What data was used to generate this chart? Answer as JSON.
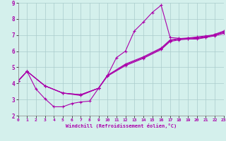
{
  "xlabel": "Windchill (Refroidissement éolien,°C)",
  "background_color": "#d4f0ec",
  "line_color": "#aa00aa",
  "grid_color": "#aacccc",
  "xlim": [
    0,
    23
  ],
  "ylim": [
    2,
    9
  ],
  "xticks": [
    0,
    1,
    2,
    3,
    4,
    5,
    6,
    7,
    8,
    9,
    10,
    11,
    12,
    13,
    14,
    15,
    16,
    17,
    18,
    19,
    20,
    21,
    22,
    23
  ],
  "yticks": [
    2,
    3,
    4,
    5,
    6,
    7,
    8,
    9
  ],
  "series1": [
    [
      0,
      4.15
    ],
    [
      1,
      4.75
    ],
    [
      2,
      3.65
    ],
    [
      3,
      3.05
    ],
    [
      4,
      2.55
    ],
    [
      5,
      2.55
    ],
    [
      6,
      2.75
    ],
    [
      7,
      2.85
    ],
    [
      8,
      2.9
    ],
    [
      9,
      3.7
    ],
    [
      10,
      4.5
    ],
    [
      11,
      5.6
    ],
    [
      12,
      6.0
    ],
    [
      13,
      7.25
    ],
    [
      14,
      7.8
    ],
    [
      15,
      8.4
    ],
    [
      16,
      8.85
    ],
    [
      17,
      6.85
    ],
    [
      18,
      6.8
    ],
    [
      19,
      6.75
    ],
    [
      20,
      6.75
    ],
    [
      21,
      6.85
    ],
    [
      22,
      7.05
    ],
    [
      23,
      7.25
    ]
  ],
  "series2": [
    [
      0,
      4.15
    ],
    [
      1,
      4.75
    ],
    [
      3,
      3.85
    ],
    [
      5,
      3.4
    ],
    [
      7,
      3.25
    ],
    [
      9,
      3.7
    ],
    [
      10,
      4.45
    ],
    [
      12,
      5.1
    ],
    [
      14,
      5.55
    ],
    [
      16,
      6.1
    ],
    [
      17,
      6.6
    ],
    [
      18,
      6.7
    ],
    [
      19,
      6.75
    ],
    [
      20,
      6.8
    ],
    [
      21,
      6.85
    ],
    [
      22,
      6.95
    ],
    [
      23,
      7.1
    ]
  ],
  "series3": [
    [
      0,
      4.15
    ],
    [
      1,
      4.75
    ],
    [
      3,
      3.85
    ],
    [
      5,
      3.4
    ],
    [
      7,
      3.3
    ],
    [
      9,
      3.7
    ],
    [
      10,
      4.5
    ],
    [
      12,
      5.15
    ],
    [
      14,
      5.6
    ],
    [
      16,
      6.15
    ],
    [
      17,
      6.65
    ],
    [
      18,
      6.75
    ],
    [
      19,
      6.8
    ],
    [
      20,
      6.85
    ],
    [
      21,
      6.9
    ],
    [
      22,
      7.0
    ],
    [
      23,
      7.2
    ]
  ],
  "series4": [
    [
      0,
      4.15
    ],
    [
      1,
      4.75
    ],
    [
      3,
      3.85
    ],
    [
      5,
      3.4
    ],
    [
      7,
      3.3
    ],
    [
      9,
      3.7
    ],
    [
      10,
      4.5
    ],
    [
      12,
      5.2
    ],
    [
      14,
      5.65
    ],
    [
      16,
      6.2
    ],
    [
      17,
      6.7
    ],
    [
      18,
      6.78
    ],
    [
      19,
      6.82
    ],
    [
      20,
      6.88
    ],
    [
      21,
      6.95
    ],
    [
      22,
      7.02
    ],
    [
      23,
      7.15
    ]
  ]
}
